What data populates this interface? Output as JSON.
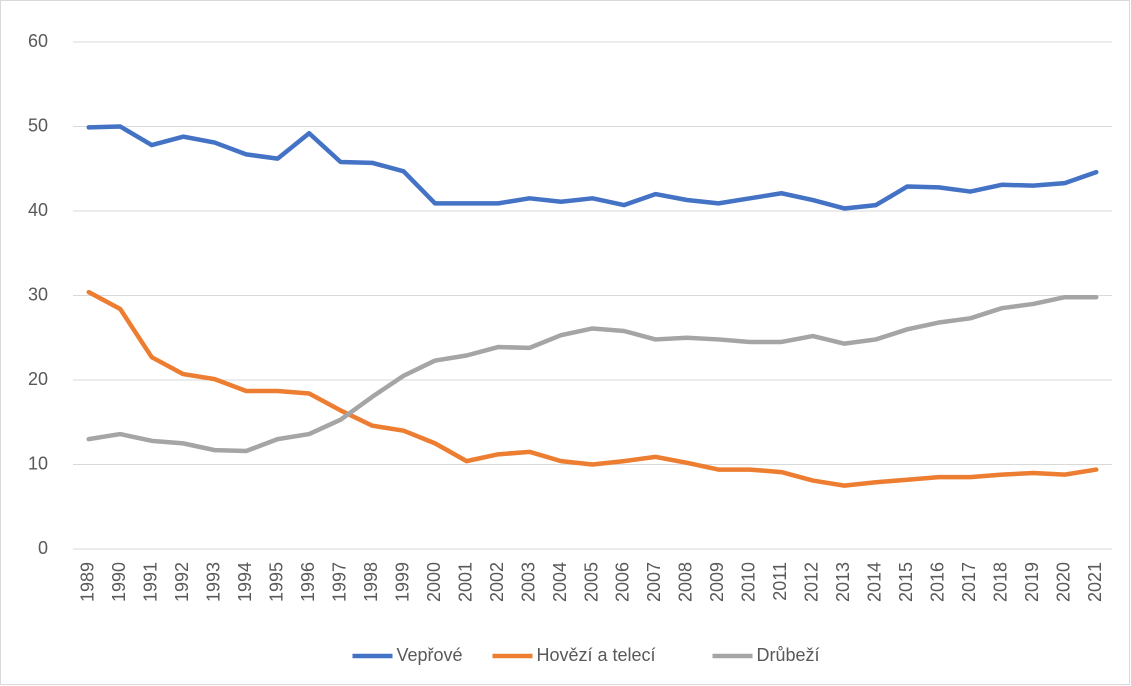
{
  "chart_data": {
    "type": "line",
    "categories": [
      "1989",
      "1990",
      "1991",
      "1992",
      "1993",
      "1994",
      "1995",
      "1996",
      "1997",
      "1998",
      "1999",
      "2000",
      "2001",
      "2002",
      "2003",
      "2004",
      "2005",
      "2006",
      "2007",
      "2008",
      "2009",
      "2010",
      "2011",
      "2012",
      "2013",
      "2014",
      "2015",
      "2016",
      "2017",
      "2018",
      "2019",
      "2020",
      "2021"
    ],
    "series": [
      {
        "name": "Vepřové",
        "color": "#4472c4",
        "values": [
          49.9,
          50.0,
          47.8,
          48.8,
          48.1,
          46.7,
          46.2,
          49.2,
          45.8,
          45.7,
          44.7,
          40.9,
          40.9,
          40.9,
          41.5,
          41.1,
          41.5,
          40.7,
          42.0,
          41.3,
          40.9,
          41.5,
          42.1,
          41.3,
          40.3,
          40.7,
          42.9,
          42.8,
          42.3,
          43.1,
          43.0,
          43.3,
          44.6
        ]
      },
      {
        "name": "Hovězí a telecí",
        "color": "#ed7d31",
        "values": [
          30.4,
          28.4,
          22.7,
          20.7,
          20.1,
          18.7,
          18.7,
          18.4,
          16.4,
          14.6,
          14.0,
          12.5,
          10.4,
          11.2,
          11.5,
          10.4,
          10.0,
          10.4,
          10.9,
          10.2,
          9.4,
          9.4,
          9.1,
          8.1,
          7.5,
          7.9,
          8.2,
          8.5,
          8.5,
          8.8,
          9.0,
          8.8,
          9.4
        ]
      },
      {
        "name": "Drůbeží",
        "color": "#a5a5a5",
        "values": [
          13.0,
          13.6,
          12.8,
          12.5,
          11.7,
          11.6,
          13.0,
          13.6,
          15.3,
          18.0,
          20.5,
          22.3,
          22.9,
          23.9,
          23.8,
          25.3,
          26.1,
          25.8,
          24.8,
          25.0,
          24.8,
          24.5,
          24.5,
          25.2,
          24.3,
          24.8,
          26.0,
          26.8,
          27.3,
          28.5,
          29.0,
          29.8,
          29.8
        ]
      }
    ],
    "ylim": [
      0,
      60
    ],
    "yticks": [
      0,
      10,
      20,
      30,
      40,
      50,
      60
    ],
    "grid": true,
    "legend": "bottom"
  }
}
